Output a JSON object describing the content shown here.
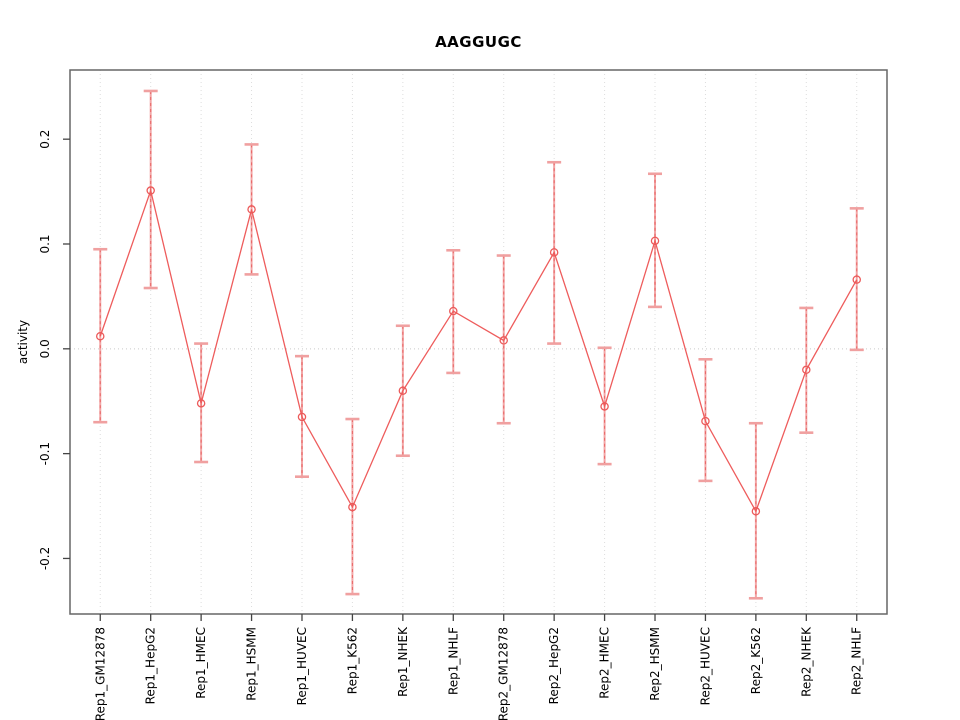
{
  "chart_data": {
    "type": "line",
    "title": "AAGGUGC",
    "xlabel": "",
    "ylabel": "activity",
    "categories": [
      "Rep1_GM12878",
      "Rep1_HepG2",
      "Rep1_HMEC",
      "Rep1_HSMM",
      "Rep1_HUVEC",
      "Rep1_K562",
      "Rep1_NHEK",
      "Rep1_NHLF",
      "Rep2_GM12878",
      "Rep2_HepG2",
      "Rep2_HMEC",
      "Rep2_HSMM",
      "Rep2_HUVEC",
      "Rep2_K562",
      "Rep2_NHEK",
      "Rep2_NHLF"
    ],
    "series": [
      {
        "name": "activity",
        "values": [
          0.012,
          0.151,
          -0.052,
          0.133,
          -0.065,
          -0.151,
          -0.04,
          0.036,
          0.008,
          0.092,
          -0.055,
          0.103,
          -0.069,
          -0.155,
          -0.02,
          0.066
        ],
        "error_upper": [
          0.095,
          0.246,
          0.005,
          0.195,
          -0.007,
          -0.067,
          0.022,
          0.094,
          0.089,
          0.178,
          0.001,
          0.167,
          -0.01,
          -0.071,
          0.039,
          0.134
        ],
        "error_lower": [
          -0.07,
          0.058,
          -0.108,
          0.071,
          -0.122,
          -0.234,
          -0.102,
          -0.023,
          -0.071,
          0.005,
          -0.11,
          0.04,
          -0.126,
          -0.238,
          -0.08,
          -0.001
        ]
      }
    ],
    "yticks": [
      -0.2,
      -0.1,
      0.0,
      0.1,
      0.2
    ],
    "ytick_labels": [
      "-0.2",
      "-0.1",
      "0.0",
      "0.1",
      "0.2"
    ],
    "ylim": [
      -0.253,
      0.266
    ],
    "grid": "vertical-dotted-at-each-category, horizontal-dotted-at-zero",
    "legend": "none",
    "colors": {
      "series_line": "#ee5c5c",
      "point_stroke": "#ec5a5a",
      "error_bar": "#f2a6a6",
      "error_bar_dash": "#e96a6a",
      "error_cap": "#f0a0a0",
      "gridline": "#dddddd",
      "zero_line": "#c9c9c9",
      "frame": "#666666",
      "tick": "#444444"
    }
  }
}
